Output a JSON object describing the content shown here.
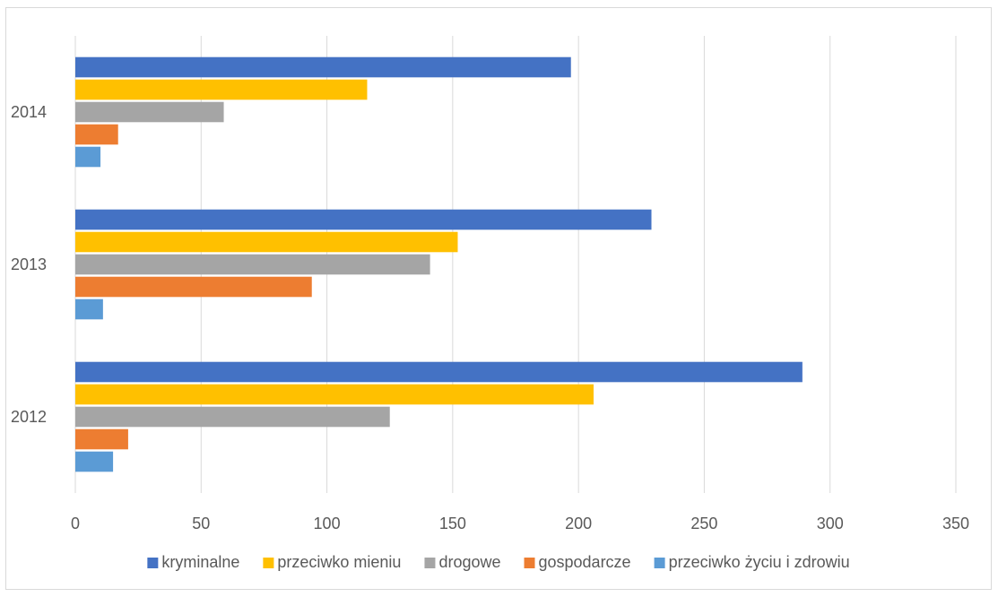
{
  "chart_data": {
    "type": "bar",
    "orientation": "horizontal",
    "categories": [
      "2012",
      "2013",
      "2014"
    ],
    "series": [
      {
        "name": "kryminalne",
        "color": "#4472c4",
        "values": [
          289,
          229,
          197
        ]
      },
      {
        "name": "przeciwko mieniu",
        "color": "#ffc000",
        "values": [
          206,
          152,
          116
        ]
      },
      {
        "name": "drogowe",
        "color": "#a5a5a5",
        "values": [
          125,
          141,
          59
        ]
      },
      {
        "name": "gospodarcze",
        "color": "#ed7d31",
        "values": [
          21,
          94,
          17
        ]
      },
      {
        "name": "przeciwko życiu i zdrowiu",
        "color": "#5b9bd5",
        "values": [
          15,
          11,
          10
        ]
      }
    ],
    "xlim": [
      0,
      350
    ],
    "xticks": [
      0,
      50,
      100,
      150,
      200,
      250,
      300,
      350
    ],
    "title": "",
    "xlabel": "",
    "ylabel": "",
    "grid": true,
    "legend_position": "bottom"
  }
}
